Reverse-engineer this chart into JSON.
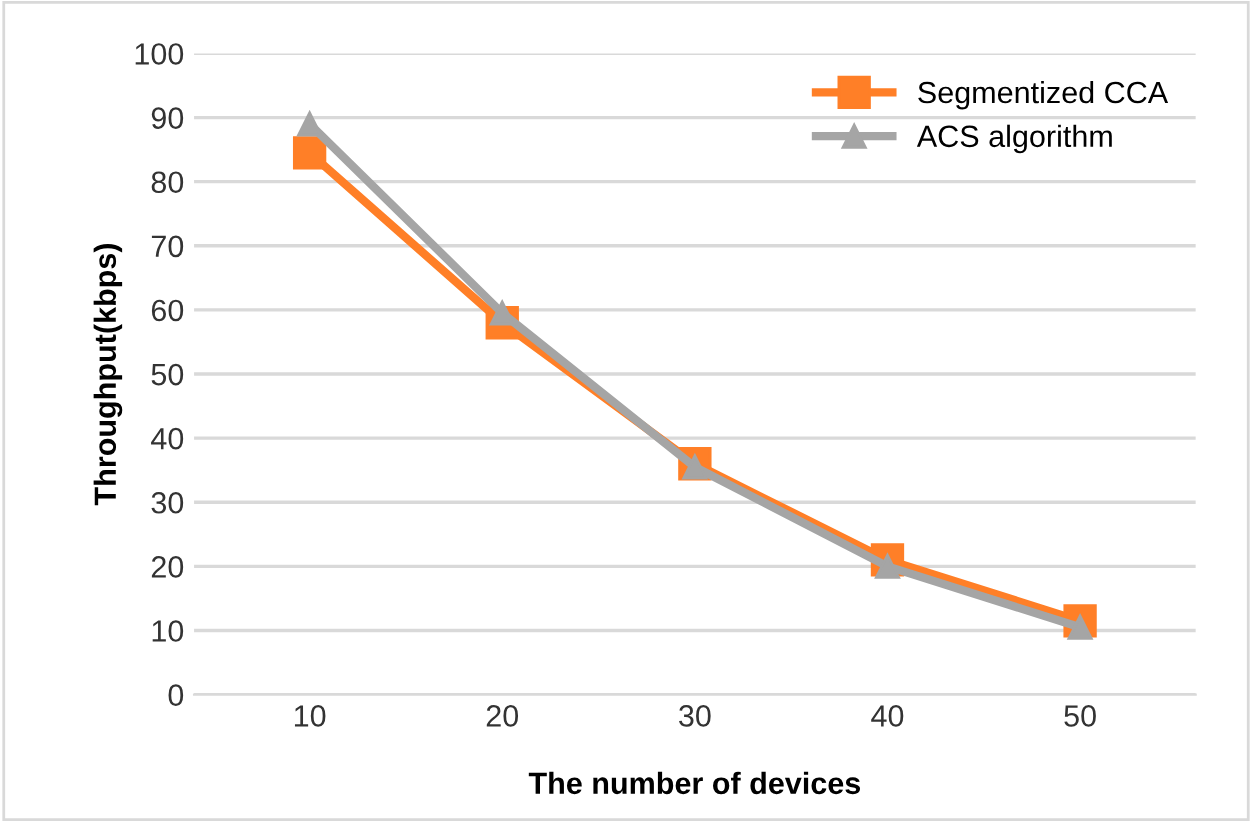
{
  "chart_data": {
    "type": "line",
    "xlabel": "The number of devices",
    "ylabel": "Throughput(kbps)",
    "categories": [
      "10",
      "20",
      "30",
      "40",
      "50"
    ],
    "series": [
      {
        "name": "Segmentized CCA",
        "color": "#ff7f27",
        "marker": "square",
        "values": [
          84.5,
          58,
          36,
          21,
          11.5
        ]
      },
      {
        "name": "ACS algorithm",
        "color": "#a5a5a5",
        "marker": "triangle",
        "values": [
          89,
          59.5,
          35.5,
          20,
          10.5
        ]
      }
    ],
    "ylim": [
      0,
      100
    ],
    "yticks": [
      0,
      10,
      20,
      30,
      40,
      50,
      60,
      70,
      80,
      90,
      100
    ],
    "grid": "y",
    "legend": "top right",
    "line_style": "solid"
  }
}
